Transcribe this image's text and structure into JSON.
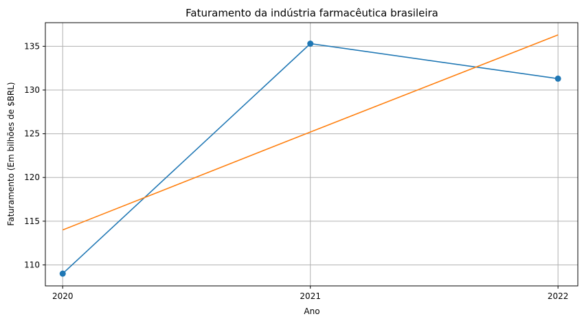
{
  "chart_data": {
    "type": "line",
    "title": "Faturamento da indústria farmacêutica brasileira",
    "xlabel": "Ano",
    "ylabel": "Faturamento (Em bilhões de $BRL)",
    "x": [
      2020,
      2021,
      2022
    ],
    "xticks": [
      "2020",
      "2021",
      "2022"
    ],
    "yticks": [
      110,
      115,
      120,
      125,
      130,
      135
    ],
    "ylim": [
      107.6,
      137.7
    ],
    "xlim": [
      2019.93,
      2022.08
    ],
    "grid": true,
    "series": [
      {
        "values": [
          109.0,
          135.3,
          131.3
        ],
        "color": "#1f77b4",
        "marker": "circle"
      },
      {
        "values": [
          114.0,
          125.2,
          136.3
        ],
        "color": "#ff7f0e",
        "marker": "none"
      }
    ]
  }
}
